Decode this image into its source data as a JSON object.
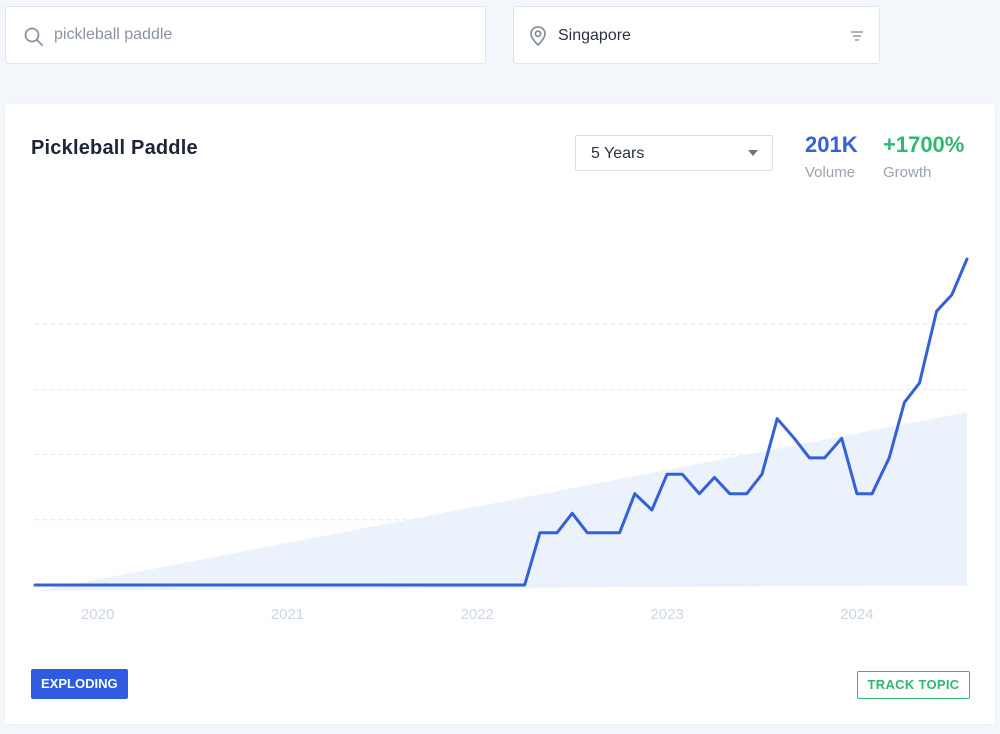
{
  "search": {
    "value": "",
    "placeholder": "pickleball paddle"
  },
  "location": {
    "value": "Singapore"
  },
  "card": {
    "title": "Pickleball Paddle",
    "range": {
      "selected": "5 Years"
    },
    "volume": {
      "value": "201K",
      "label": "Volume"
    },
    "growth": {
      "value": "+1700%",
      "label": "Growth"
    },
    "badge": "EXPLODING",
    "track": "TRACK TOPIC"
  },
  "colors": {
    "line": "#3461d8",
    "trend_fill": "#e7f0fb",
    "badge": "#2e5bdf",
    "growth": "#2fb86e"
  },
  "chart_data": {
    "type": "line",
    "title": "",
    "xlabel": "",
    "ylabel": "",
    "x_ticks": [
      "2020",
      "2021",
      "2022",
      "2023",
      "2024"
    ],
    "x_tick_positions": [
      2020,
      2021,
      2022,
      2023,
      2024
    ],
    "xlim": [
      2019.67,
      2024.58
    ],
    "ylim": [
      0,
      100
    ],
    "grid": true,
    "series": [
      {
        "name": "",
        "x": [
          2019.67,
          2020.0,
          2020.5,
          2021.0,
          2021.5,
          2022.0,
          2022.25,
          2022.33,
          2022.42,
          2022.5,
          2022.58,
          2022.75,
          2022.83,
          2022.92,
          2023.0,
          2023.08,
          2023.17,
          2023.25,
          2023.33,
          2023.42,
          2023.5,
          2023.58,
          2023.67,
          2023.75,
          2023.83,
          2023.92,
          2024.0,
          2024.08,
          2024.17,
          2024.25,
          2024.33,
          2024.42,
          2024.5,
          2024.58
        ],
        "values": [
          0,
          0,
          0,
          0,
          0,
          0,
          0,
          16,
          16,
          22,
          16,
          16,
          28,
          23,
          34,
          34,
          28,
          33,
          28,
          28,
          34,
          51,
          45,
          39,
          39,
          45,
          28,
          28,
          39,
          56,
          62,
          84,
          89,
          100
        ]
      }
    ],
    "trend_area": {
      "x": [
        2019.67,
        2024.58
      ],
      "values": [
        -2,
        53
      ]
    }
  }
}
